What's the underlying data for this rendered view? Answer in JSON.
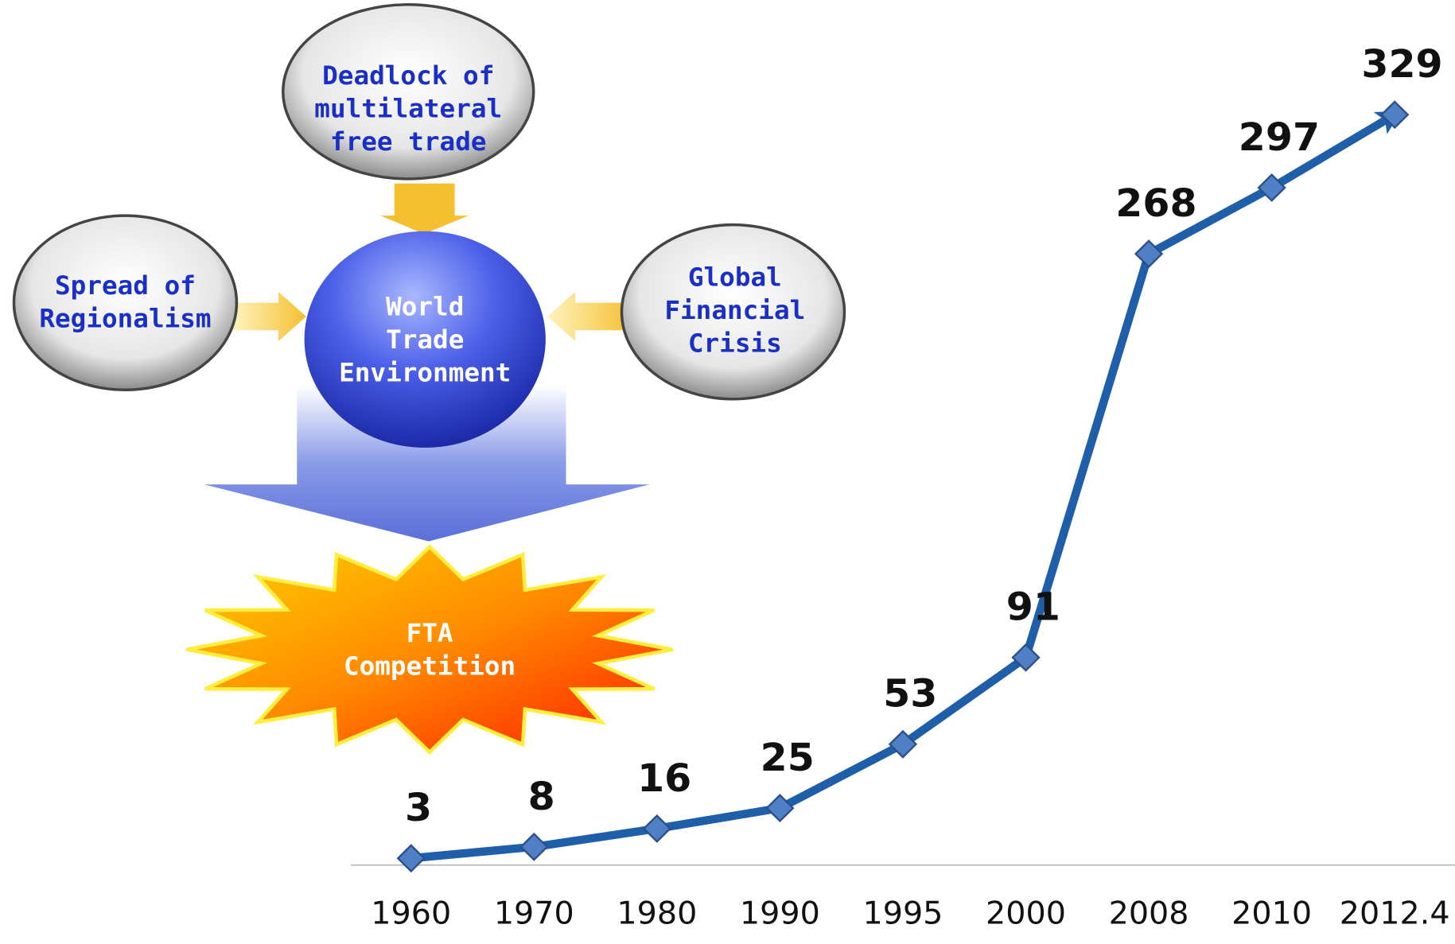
{
  "chart_data": {
    "type": "line",
    "categories": [
      "1960",
      "1970",
      "1980",
      "1990",
      "1995",
      "2000",
      "2008",
      "2010",
      "2012.4"
    ],
    "series": [
      {
        "color": "#1f5ea8",
        "values": [
          3,
          8,
          16,
          25,
          53,
          91,
          268,
          297,
          329
        ]
      }
    ]
  },
  "diagram": {
    "nodes": [
      {
        "lines": [
          "Deadlock of",
          "multilateral",
          "free trade"
        ]
      },
      {
        "lines": [
          "Spread of",
          "Regionalism"
        ]
      },
      {
        "lines": [
          "World",
          "Trade",
          "Environment"
        ]
      },
      {
        "lines": [
          "Global",
          "Financial",
          "Crisis"
        ]
      },
      {
        "lines": [
          "FTA",
          "Competition"
        ]
      }
    ]
  }
}
